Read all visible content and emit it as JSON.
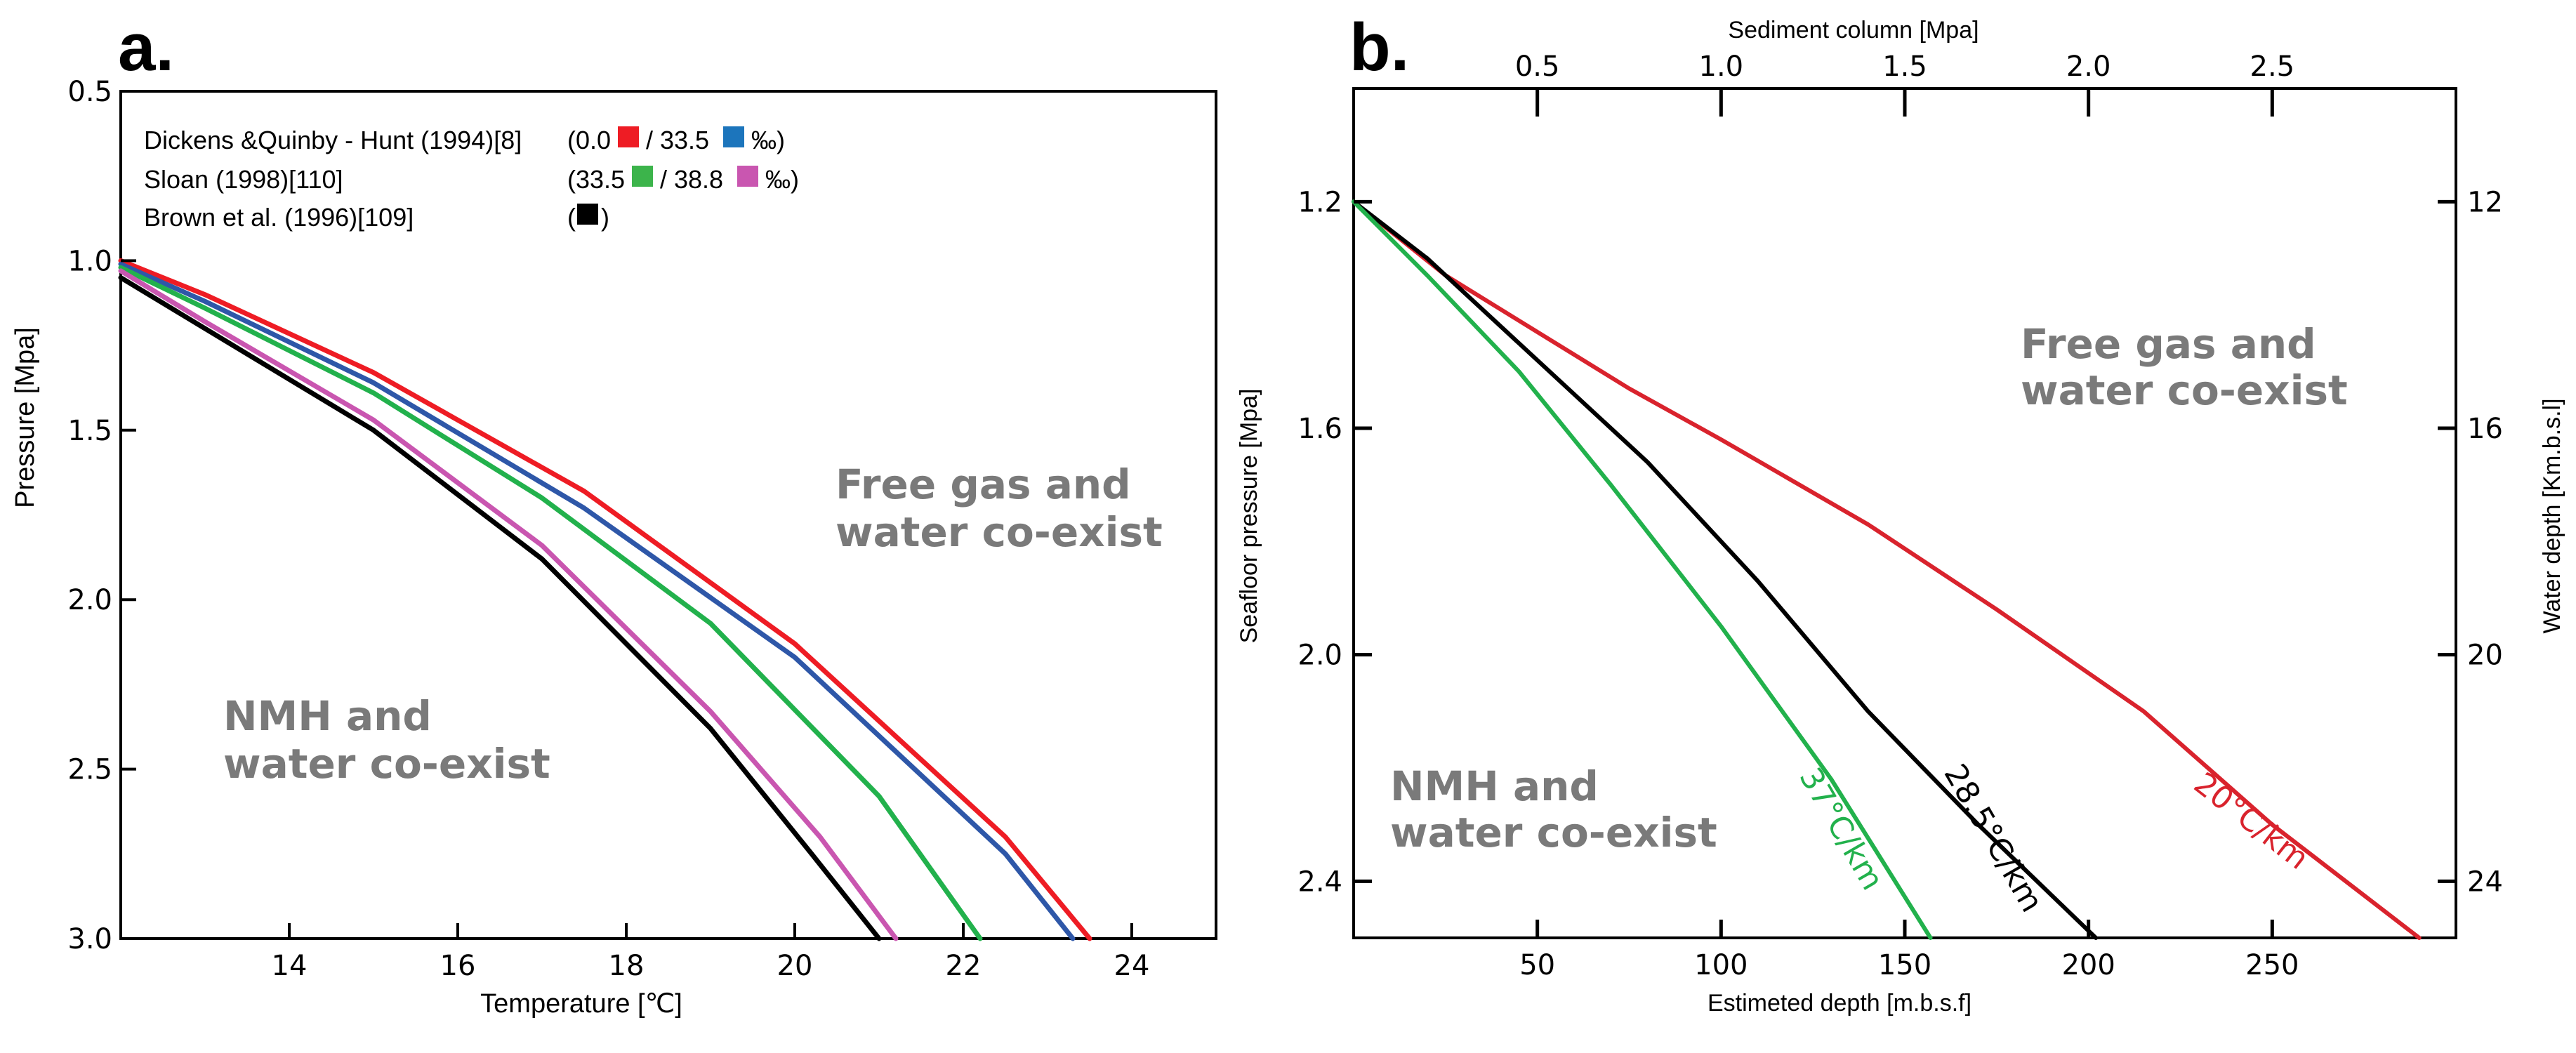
{
  "chart_data": [
    {
      "panel": "a.",
      "type": "line",
      "xlabel": "Temperature [℃]",
      "ylabel": "Pressure [Mpa]",
      "xlim": [
        12,
        25
      ],
      "ylim": [
        3.0,
        0.5
      ],
      "xticks": [
        "14",
        "16",
        "18",
        "20",
        "22",
        "24"
      ],
      "yticks": [
        "0.5",
        "1.0",
        "1.5",
        "2.0",
        "2.5",
        "3.0"
      ],
      "grid": false,
      "legend": {
        "position": "top-left",
        "entries": [
          {
            "label": "Dickens &Quinby - Hunt (1994)[8]",
            "parts": [
              "(0.0",
              "/ 33.5",
              "‰)"
            ],
            "colors": [
              "#ee1c24",
              "#1c75bc"
            ]
          },
          {
            "label": "Sloan (1998)[110]",
            "parts": [
              "(33.5",
              "/ 38.8",
              "‰)"
            ],
            "colors": [
              "#3cb44b",
              "#c956b0"
            ]
          },
          {
            "label": "Brown et al. (1996)[109]",
            "parts": [
              "(",
              ")"
            ],
            "colors": [
              "#000000"
            ]
          }
        ]
      },
      "regions": {
        "upper": [
          "Free gas and",
          "water co-exist"
        ],
        "lower": [
          "NMH and",
          "water co-exist"
        ]
      },
      "series": [
        {
          "name": "Dickens & Quinby-Hunt 0.0‰",
          "color": "#ee1c24",
          "x": [
            12,
            13,
            15,
            17.5,
            20,
            22.5,
            23.5
          ],
          "y": [
            1.0,
            1.1,
            1.33,
            1.68,
            2.13,
            2.7,
            3.0
          ]
        },
        {
          "name": "Dickens & Quinby-Hunt 33.5‰",
          "color": "#2e57a8",
          "x": [
            12,
            13,
            15,
            17.5,
            20,
            22.5,
            23.3
          ],
          "y": [
            1.01,
            1.12,
            1.36,
            1.73,
            2.17,
            2.75,
            3.0
          ]
        },
        {
          "name": "Sloan 33.5‰",
          "color": "#22b14c",
          "x": [
            12,
            13,
            15,
            17,
            19,
            21,
            22.2
          ],
          "y": [
            1.02,
            1.14,
            1.39,
            1.7,
            2.07,
            2.58,
            3.0
          ]
        },
        {
          "name": "Sloan 38.8‰",
          "color": "#c956b0",
          "x": [
            12,
            13,
            15,
            17,
            19,
            20.3,
            21.2
          ],
          "y": [
            1.03,
            1.18,
            1.47,
            1.84,
            2.33,
            2.7,
            3.0
          ]
        },
        {
          "name": "Brown et al.",
          "color": "#000000",
          "x": [
            12,
            13,
            15,
            17,
            19,
            20.2,
            21
          ],
          "y": [
            1.05,
            1.2,
            1.5,
            1.88,
            2.38,
            2.75,
            3.0
          ]
        }
      ]
    },
    {
      "panel": "b.",
      "type": "line",
      "xlabel": "Estimeted depth [m.b.s.f]",
      "x2label": "Sediment column [Mpa]",
      "ylabel": "Seafloor pressure [Mpa]",
      "y2label": "Water depth [Km.b.s.l]",
      "xlim": [
        0,
        300
      ],
      "ylim": [
        2.5,
        1.0
      ],
      "xticks": [
        "50",
        "100",
        "150",
        "200",
        "250"
      ],
      "x2ticks": [
        "0.5",
        "1.0",
        "1.5",
        "2.0",
        "2.5"
      ],
      "yticks": [
        "1.2",
        "1.6",
        "2.0",
        "2.4"
      ],
      "y2ticks": [
        "12",
        "16",
        "20",
        "24"
      ],
      "grid": false,
      "regions": {
        "upper": [
          "Free gas and",
          "water co-exist"
        ],
        "lower": [
          "NMH and",
          "water co-exist"
        ]
      },
      "series": [
        {
          "name": "20°C/km",
          "label": "20°C/km",
          "color": "#d9232d",
          "x": [
            0,
            25,
            50,
            75,
            100,
            140,
            175,
            215,
            250,
            290
          ],
          "y": [
            1.2,
            1.33,
            1.43,
            1.53,
            1.62,
            1.77,
            1.92,
            2.1,
            2.3,
            2.5
          ]
        },
        {
          "name": "28.5°C/km",
          "label": "28.5°C/km",
          "color": "#000000",
          "x": [
            0,
            20,
            50,
            80,
            110,
            140,
            170,
            202
          ],
          "y": [
            1.2,
            1.3,
            1.48,
            1.66,
            1.87,
            2.1,
            2.3,
            2.5
          ]
        },
        {
          "name": "37°C/km",
          "label": "37°C/km",
          "color": "#22b14c",
          "x": [
            0,
            20,
            45,
            70,
            100,
            130,
            157
          ],
          "y": [
            1.2,
            1.33,
            1.5,
            1.7,
            1.95,
            2.22,
            2.5
          ]
        }
      ]
    }
  ]
}
